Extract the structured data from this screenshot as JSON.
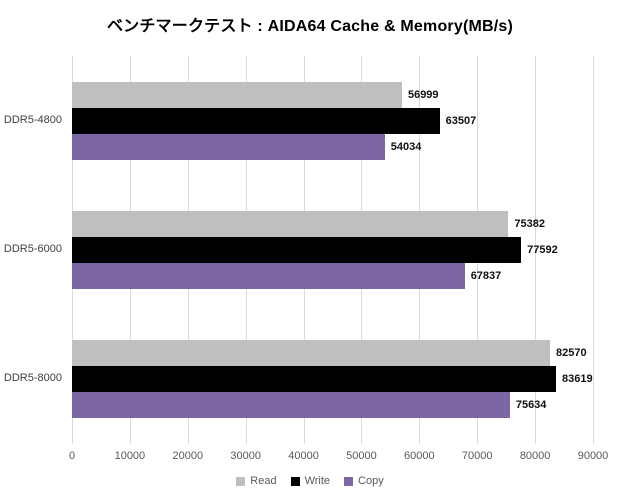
{
  "page": {
    "background": "#ffffff"
  },
  "chart_data": {
    "type": "bar",
    "orientation": "horizontal",
    "title": "ベンチマークテスト : AIDA64 Cache & Memory(MB/s)",
    "categories": [
      "DDR5-4800",
      "DDR5-6000",
      "DDR5-8000"
    ],
    "series": [
      {
        "name": "Read",
        "color": "#bfbfbf",
        "values": [
          56999,
          75382,
          82570
        ]
      },
      {
        "name": "Write",
        "color": "#000000",
        "values": [
          63507,
          77592,
          83619
        ]
      },
      {
        "name": "Copy",
        "color": "#7c66a4",
        "values": [
          54034,
          67837,
          75634
        ]
      }
    ],
    "xlim": [
      0,
      90000
    ],
    "x_ticks": [
      0,
      10000,
      20000,
      30000,
      40000,
      50000,
      60000,
      70000,
      80000,
      90000
    ],
    "x_tick_labels": [
      "0",
      "10000",
      "20000",
      "30000",
      "40000",
      "50000",
      "60000",
      "70000",
      "80000",
      "90000"
    ],
    "grid": true,
    "gridline_color": "#d9d9d9",
    "data_labels": true,
    "legend_position": "bottom",
    "legend": [
      "Read",
      "Write",
      "Copy"
    ]
  }
}
